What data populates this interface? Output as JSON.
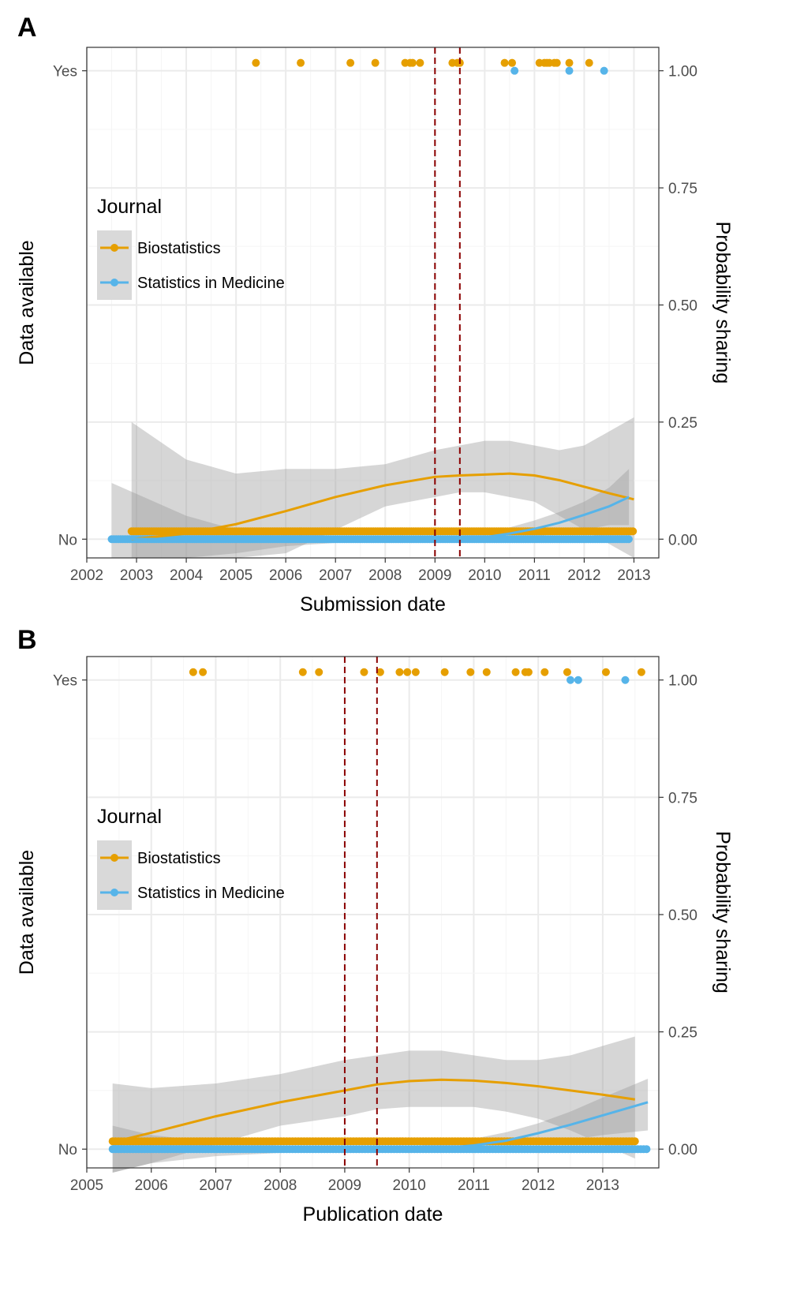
{
  "colors": {
    "biostatistics": "#E69F00",
    "statistics_in_medicine": "#56B4E9",
    "policy_line": "#8B0000",
    "ribbon": "#999999",
    "grid": "#ebebeb",
    "panel_border": "#333333"
  },
  "chart_data": [
    {
      "type": "scatter",
      "panel_label": "A",
      "xlabel": "Submission date",
      "ylabel": "Data available",
      "y2label": "Probability sharing",
      "x_tick_labels": [
        "2002",
        "2003",
        "2004",
        "2005",
        "2006",
        "2007",
        "2008",
        "2009",
        "2010",
        "2011",
        "2012",
        "2013"
      ],
      "y_tick_labels": [
        "No",
        "Yes"
      ],
      "y2_tick_labels": [
        "0.00",
        "0.25",
        "0.50",
        "0.75",
        "1.00"
      ],
      "xlim": [
        2002,
        2013.5
      ],
      "y2lim": [
        -0.04,
        1.05
      ],
      "grid": true,
      "legend": {
        "title": "Journal",
        "position": "left-middle",
        "entries": [
          "Biostatistics",
          "Statistics in Medicine"
        ]
      },
      "vlines": [
        2009.0,
        2009.5
      ],
      "series": [
        {
          "name": "Biostatistics",
          "yes_points": [
            2005.4,
            2006.3,
            2007.3,
            2007.8,
            2008.4,
            2008.5,
            2008.55,
            2008.7,
            2009.35,
            2009.45,
            2009.5,
            2010.4,
            2010.55,
            2011.1,
            2011.2,
            2011.25,
            2011.3,
            2011.4,
            2011.45,
            2011.7,
            2012.1
          ],
          "no_points_range": [
            2002.9,
            2013.0
          ],
          "trend": {
            "x": [
              2002.9,
              2004,
              2005,
              2006,
              2007,
              2008,
              2009,
              2009.5,
              2010,
              2010.5,
              2011,
              2011.5,
              2012,
              2012.5,
              2013.0
            ],
            "y": [
              0.0,
              0.012,
              0.032,
              0.06,
              0.09,
              0.115,
              0.133,
              0.136,
              0.138,
              0.14,
              0.136,
              0.126,
              0.112,
              0.098,
              0.085
            ]
          },
          "ci_upper": [
            0.25,
            0.17,
            0.14,
            0.15,
            0.15,
            0.16,
            0.19,
            0.2,
            0.21,
            0.21,
            0.2,
            0.19,
            0.2,
            0.23,
            0.26
          ],
          "ci_lower": [
            -0.04,
            -0.04,
            -0.04,
            -0.03,
            0.02,
            0.07,
            0.09,
            0.1,
            0.1,
            0.09,
            0.08,
            0.05,
            0.02,
            -0.01,
            -0.04
          ]
        },
        {
          "name": "Statistics in Medicine",
          "yes_points": [
            2010.6,
            2011.7,
            2012.4
          ],
          "no_points_range": [
            2002.5,
            2012.9
          ],
          "trend": {
            "x": [
              2002.5,
              2004,
              2005,
              2006,
              2007,
              2008,
              2009,
              2009.5,
              2010,
              2010.5,
              2011,
              2011.5,
              2012,
              2012.5,
              2012.9
            ],
            "y": [
              0.001,
              0.0,
              -0.002,
              -0.002,
              -0.001,
              -0.001,
              0.0,
              0.001,
              0.004,
              0.012,
              0.022,
              0.035,
              0.052,
              0.07,
              0.09
            ]
          },
          "ci_upper": [
            0.12,
            0.05,
            0.02,
            0.01,
            0.008,
            0.005,
            0.006,
            0.008,
            0.012,
            0.025,
            0.04,
            0.058,
            0.08,
            0.11,
            0.15
          ],
          "ci_lower": [
            -0.04,
            -0.04,
            -0.03,
            -0.015,
            -0.008,
            -0.006,
            -0.006,
            -0.006,
            -0.004,
            0.0,
            0.006,
            0.012,
            0.02,
            0.03,
            0.03
          ]
        }
      ]
    },
    {
      "type": "scatter",
      "panel_label": "B",
      "xlabel": "Publication date",
      "ylabel": "Data available",
      "y2label": "Probability sharing",
      "x_tick_labels": [
        "2005",
        "2006",
        "2007",
        "2008",
        "2009",
        "2010",
        "2011",
        "2012",
        "2013"
      ],
      "y_tick_labels": [
        "No",
        "Yes"
      ],
      "y2_tick_labels": [
        "0.00",
        "0.25",
        "0.50",
        "0.75",
        "1.00"
      ],
      "xlim": [
        2005,
        2013.87
      ],
      "y2lim": [
        -0.04,
        1.05
      ],
      "grid": true,
      "legend": {
        "title": "Journal",
        "position": "left-middle",
        "entries": [
          "Biostatistics",
          "Statistics in Medicine"
        ]
      },
      "vlines": [
        2009.0,
        2009.5
      ],
      "series": [
        {
          "name": "Biostatistics",
          "yes_points": [
            2006.65,
            2006.8,
            2008.35,
            2008.6,
            2009.3,
            2009.55,
            2009.85,
            2009.97,
            2010.1,
            2010.55,
            2010.95,
            2011.2,
            2011.65,
            2011.8,
            2011.85,
            2012.1,
            2012.45,
            2013.05,
            2013.6
          ],
          "no_points_range": [
            2005.4,
            2013.5
          ],
          "trend": {
            "x": [
              2005.4,
              2006,
              2007,
              2008,
              2009,
              2009.5,
              2010,
              2010.5,
              2011,
              2011.5,
              2012,
              2012.5,
              2013,
              2013.5
            ],
            "y": [
              0.015,
              0.035,
              0.07,
              0.1,
              0.125,
              0.138,
              0.145,
              0.148,
              0.146,
              0.141,
              0.134,
              0.125,
              0.116,
              0.106
            ]
          },
          "ci_upper": [
            0.14,
            0.13,
            0.14,
            0.16,
            0.19,
            0.2,
            0.21,
            0.21,
            0.2,
            0.19,
            0.19,
            0.2,
            0.22,
            0.24
          ],
          "ci_lower": [
            -0.05,
            -0.03,
            0.01,
            0.05,
            0.07,
            0.085,
            0.09,
            0.09,
            0.09,
            0.08,
            0.065,
            0.04,
            0.01,
            -0.02
          ]
        },
        {
          "name": "Statistics in Medicine",
          "yes_points": [
            2012.5,
            2012.62,
            2013.35
          ],
          "no_points_range": [
            2005.4,
            2013.7
          ],
          "trend": {
            "x": [
              2005.4,
              2006,
              2007,
              2008,
              2009,
              2009.5,
              2010,
              2010.5,
              2011,
              2011.5,
              2012,
              2012.5,
              2013,
              2013.7
            ],
            "y": [
              0.006,
              0.004,
              0.001,
              0.0,
              -0.001,
              -0.002,
              -0.001,
              0.002,
              0.008,
              0.018,
              0.034,
              0.052,
              0.072,
              0.1
            ]
          },
          "ci_upper": [
            0.05,
            0.03,
            0.015,
            0.008,
            0.005,
            0.004,
            0.006,
            0.012,
            0.022,
            0.036,
            0.055,
            0.08,
            0.11,
            0.15
          ],
          "ci_lower": [
            -0.05,
            -0.03,
            -0.015,
            -0.008,
            -0.007,
            -0.007,
            -0.006,
            -0.004,
            0.0,
            0.005,
            0.012,
            0.02,
            0.03,
            0.04
          ]
        }
      ]
    }
  ]
}
